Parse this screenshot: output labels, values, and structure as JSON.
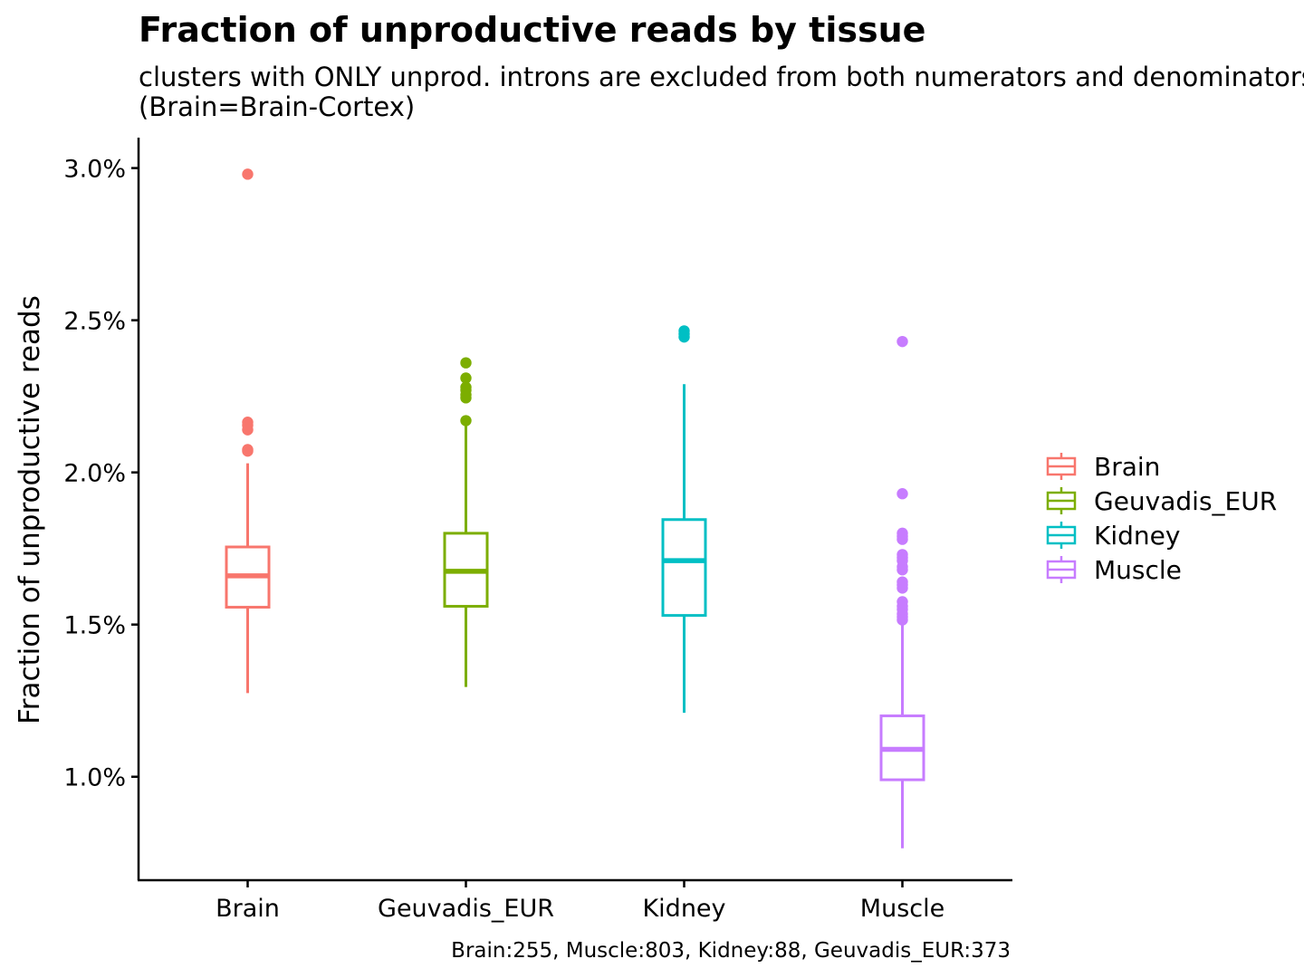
{
  "chart_data": {
    "type": "box",
    "title": "Fraction of unproductive reads by tissue",
    "subtitle_lines": [
      "clusters with ONLY unprod. introns are excluded from both numerators and denominators",
      "(Brain=Brain-Cortex)"
    ],
    "xlabel": "",
    "ylabel": "Fraction of unproductive reads",
    "caption": "Brain:255, Muscle:803, Kidney:88, Geuvadis_EUR:373",
    "ylim": [
      0.66,
      3.1
    ],
    "yticks": [
      1.0,
      1.5,
      2.0,
      2.5,
      3.0
    ],
    "ytick_labels": [
      "1.0%",
      "1.5%",
      "2.0%",
      "2.5%",
      "3.0%"
    ],
    "categories": [
      "Brain",
      "Geuvadis_EUR",
      "Kidney",
      "Muscle"
    ],
    "legend": {
      "position": "right",
      "entries": [
        "Brain",
        "Geuvadis_EUR",
        "Kidney",
        "Muscle"
      ]
    },
    "grid": false,
    "series": [
      {
        "name": "Brain",
        "color": "#F8766D",
        "whisker_low": 1.275,
        "q1": 1.557,
        "median": 1.66,
        "q3": 1.755,
        "whisker_high": 2.03,
        "outliers": [
          2.98,
          2.165,
          2.155,
          2.14,
          2.075,
          2.07
        ]
      },
      {
        "name": "Geuvadis_EUR",
        "color": "#7CAE00",
        "whisker_low": 1.295,
        "q1": 1.56,
        "median": 1.675,
        "q3": 1.8,
        "whisker_high": 2.16,
        "outliers": [
          2.36,
          2.31,
          2.28,
          2.27,
          2.255,
          2.245,
          2.17
        ]
      },
      {
        "name": "Kidney",
        "color": "#00BFC4",
        "whisker_low": 1.21,
        "q1": 1.53,
        "median": 1.71,
        "q3": 1.845,
        "whisker_high": 2.29,
        "outliers": [
          2.465,
          2.455,
          2.445
        ]
      },
      {
        "name": "Muscle",
        "color": "#C77CFF",
        "whisker_low": 0.765,
        "q1": 0.99,
        "median": 1.09,
        "q3": 1.2,
        "whisker_high": 1.505,
        "outliers": [
          2.43,
          1.93,
          1.8,
          1.79,
          1.78,
          1.73,
          1.72,
          1.71,
          1.69,
          1.68,
          1.64,
          1.63,
          1.62,
          1.575,
          1.56,
          1.55,
          1.535,
          1.525,
          1.515
        ]
      }
    ]
  }
}
